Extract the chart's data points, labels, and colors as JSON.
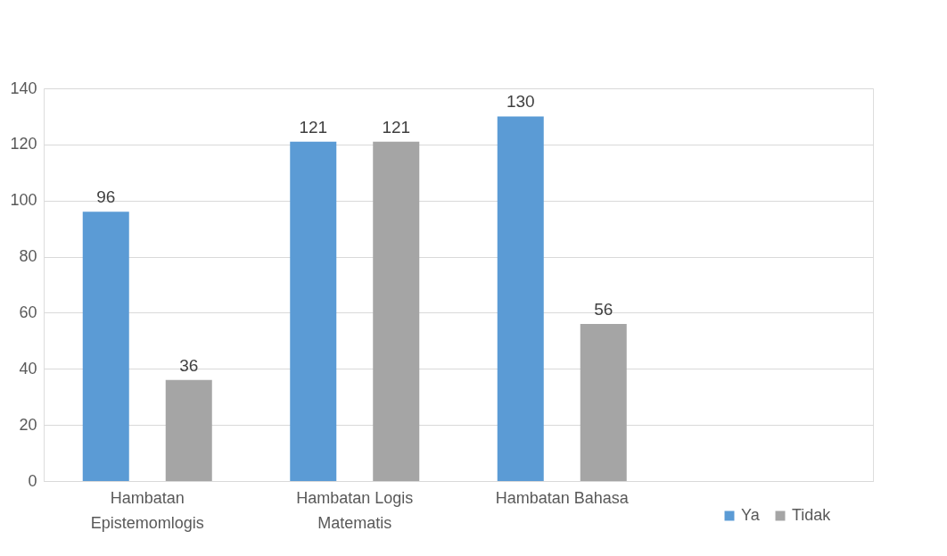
{
  "chart_data": {
    "type": "bar",
    "categories": [
      "Hambatan Epistemomlogis",
      "Hambatan Logis Matematis",
      "Hambatan Bahasa",
      null
    ],
    "series": [
      {
        "name": "Ya",
        "color": "#5b9bd5",
        "values": [
          96,
          121,
          130,
          null
        ]
      },
      {
        "name": "Tidak",
        "color": "#a5a5a5",
        "values": [
          36,
          121,
          56,
          null
        ]
      }
    ],
    "ylim": [
      0,
      140
    ],
    "yticks": [
      0,
      20,
      40,
      60,
      80,
      100,
      120,
      140
    ],
    "grid": "y",
    "legend": "bottom right",
    "data_labels": true
  }
}
